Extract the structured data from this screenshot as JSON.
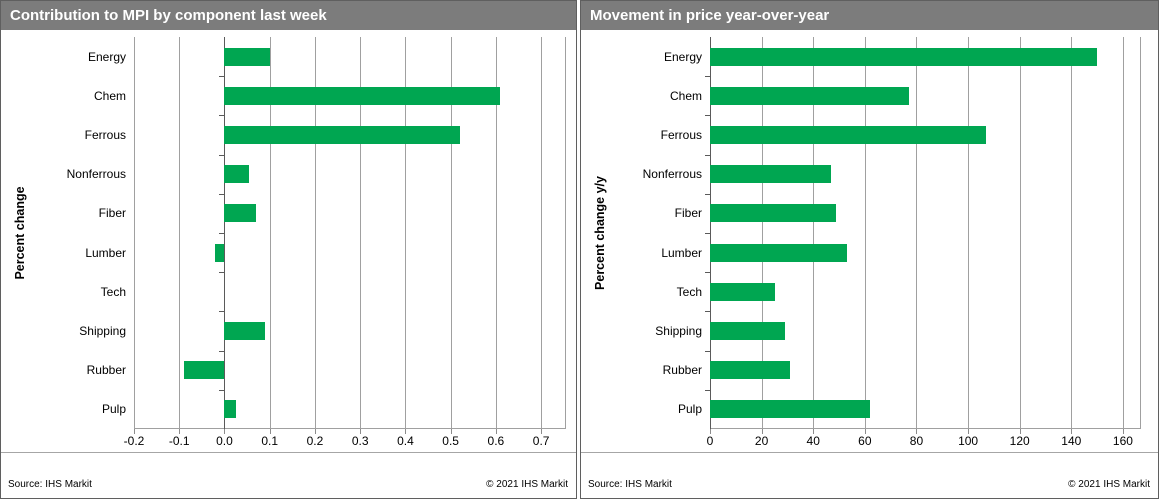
{
  "colors": {
    "bar_green": "#00a651",
    "title_bar_bg": "#7c7c7c",
    "title_text": "#ffffff",
    "gridline": "#a0a0a0",
    "axis_line": "#5a5a5a"
  },
  "chart_data": [
    {
      "type": "bar",
      "orientation": "horizontal",
      "title": "Contribution to MPI by component last week",
      "ylabel": "Percent change",
      "categories": [
        "Energy",
        "Chem",
        "Ferrous",
        "Nonferrous",
        "Fiber",
        "Lumber",
        "Tech",
        "Shipping",
        "Rubber",
        "Pulp"
      ],
      "values": [
        0.1,
        0.61,
        0.52,
        0.055,
        0.07,
        -0.02,
        0.0,
        0.09,
        -0.09,
        0.025
      ],
      "xlim": [
        -0.2,
        0.755
      ],
      "xticks": [
        -0.2,
        -0.1,
        0.0,
        0.1,
        0.2,
        0.3,
        0.4,
        0.5,
        0.6,
        0.7
      ],
      "xtick_labels": [
        "-0.2",
        "-0.1",
        "0.0",
        "0.1",
        "0.2",
        "0.3",
        "0.4",
        "0.5",
        "0.6",
        "0.7"
      ],
      "grid": true,
      "legend": false,
      "source": "Source: IHS Markit",
      "copyright": "© 2021  IHS Markit"
    },
    {
      "type": "bar",
      "orientation": "horizontal",
      "title": "Movement in price year-over-year",
      "ylabel": "Percent change y/y",
      "categories": [
        "Energy",
        "Chem",
        "Ferrous",
        "Nonferrous",
        "Fiber",
        "Lumber",
        "Tech",
        "Shipping",
        "Rubber",
        "Pulp"
      ],
      "values": [
        150,
        77,
        107,
        47,
        49,
        53,
        25,
        29,
        31,
        62
      ],
      "xlim": [
        0,
        167
      ],
      "xticks": [
        0,
        20,
        40,
        60,
        80,
        100,
        120,
        140,
        160
      ],
      "xtick_labels": [
        "0",
        "20",
        "40",
        "60",
        "80",
        "100",
        "120",
        "140",
        "160"
      ],
      "grid": true,
      "legend": false,
      "source": "Source: IHS Markit",
      "copyright": "© 2021  IHS Markit"
    }
  ]
}
